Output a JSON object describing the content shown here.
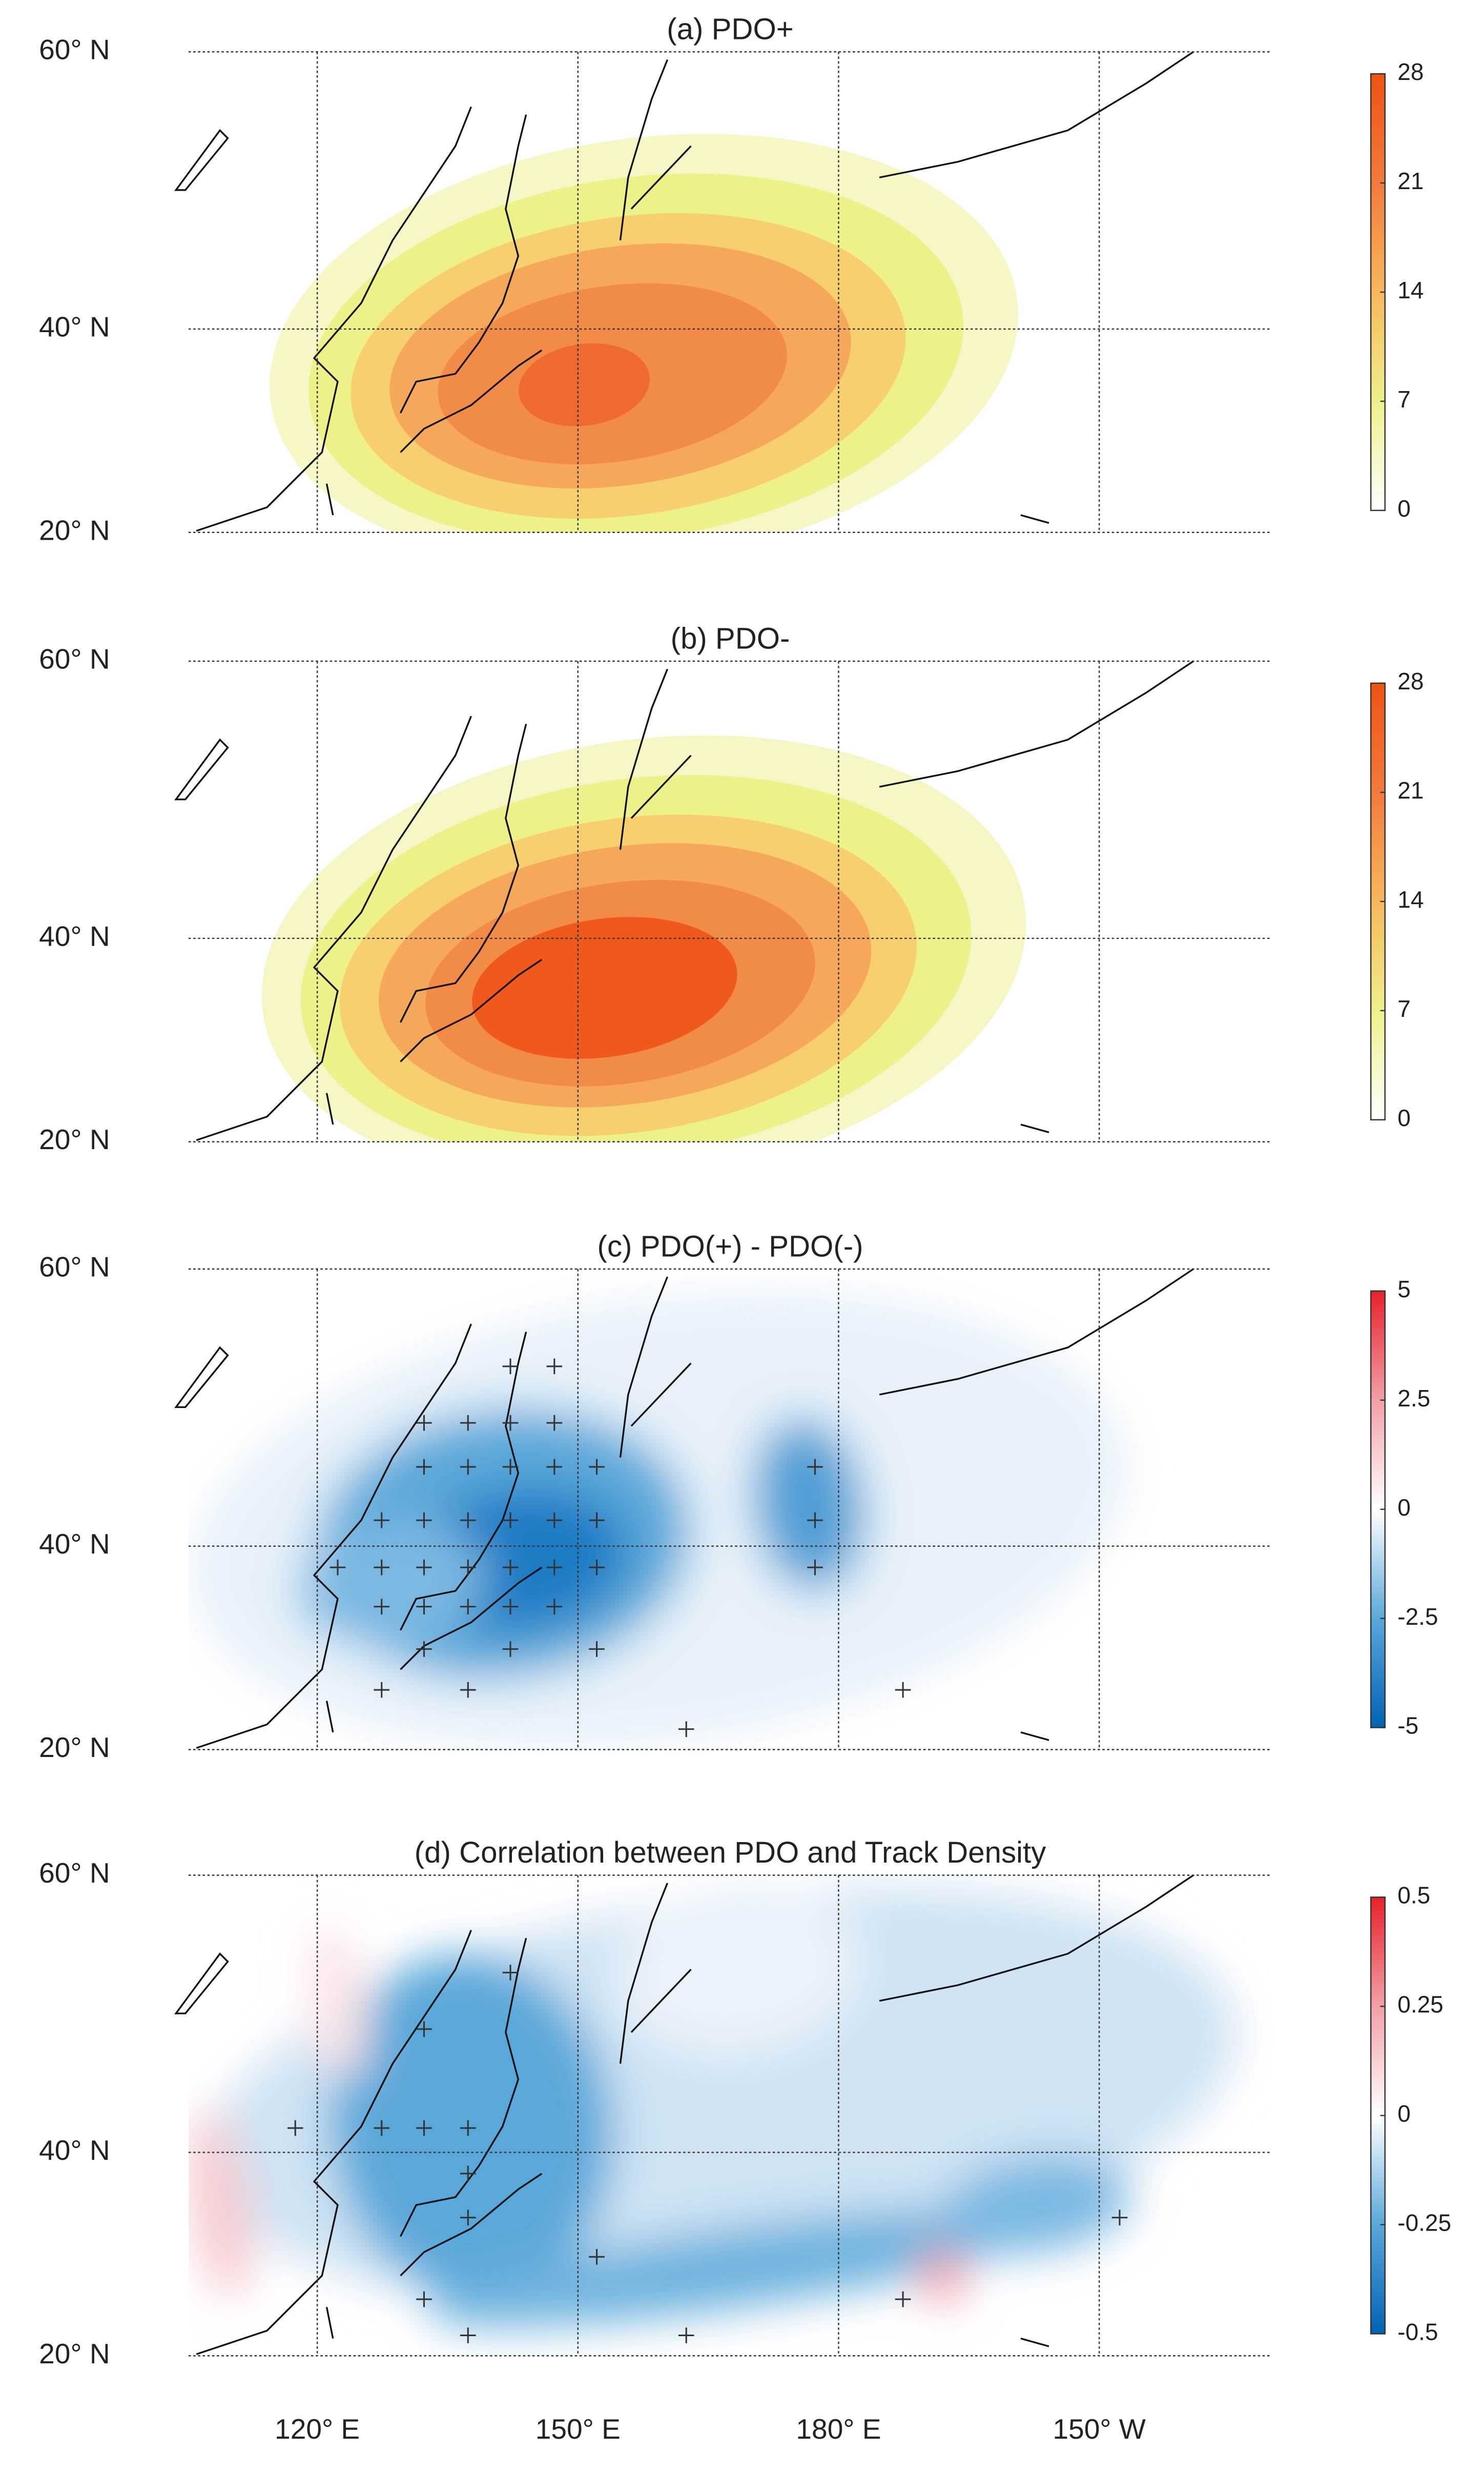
{
  "lat_ticks": [
    {
      "value": 20,
      "label": "20° N"
    },
    {
      "value": 40,
      "label": "40° N"
    },
    {
      "value": 60,
      "label": "60° N"
    }
  ],
  "lon_ticks": [
    {
      "value": 120,
      "label": "120° E"
    },
    {
      "value": 150,
      "label": "150° E"
    },
    {
      "value": 180,
      "label": "180° E"
    },
    {
      "value": 210,
      "label": "150° W"
    }
  ],
  "panels": [
    {
      "title": "(a) PDO+",
      "colorbar_ticks": [
        0,
        7,
        14,
        21,
        28
      ],
      "colormap": [
        "#ffffff",
        "#eef08a",
        "#f7b85a",
        "#f27a3a",
        "#ee5412"
      ]
    },
    {
      "title": "(b) PDO-",
      "colorbar_ticks": [
        0,
        7,
        14,
        21,
        28
      ],
      "colormap": [
        "#ffffff",
        "#eef08a",
        "#f7b85a",
        "#f27a3a",
        "#ee5412"
      ]
    },
    {
      "title": "(c) PDO(+) - PDO(-)",
      "colorbar_ticks": [
        -5,
        -2.5,
        0,
        2.5,
        5
      ],
      "colormap": [
        "#0062b4",
        "#5aa8da",
        "#ffffff",
        "#f2a0a6",
        "#e8202a"
      ]
    },
    {
      "title": "(d) Correlation between PDO and Track Density",
      "colorbar_ticks": [
        -0.5,
        -0.25,
        0,
        0.25,
        0.5
      ],
      "colormap": [
        "#0062b4",
        "#5aa8da",
        "#ffffff",
        "#f2a0a6",
        "#e8202a"
      ]
    }
  ]
}
